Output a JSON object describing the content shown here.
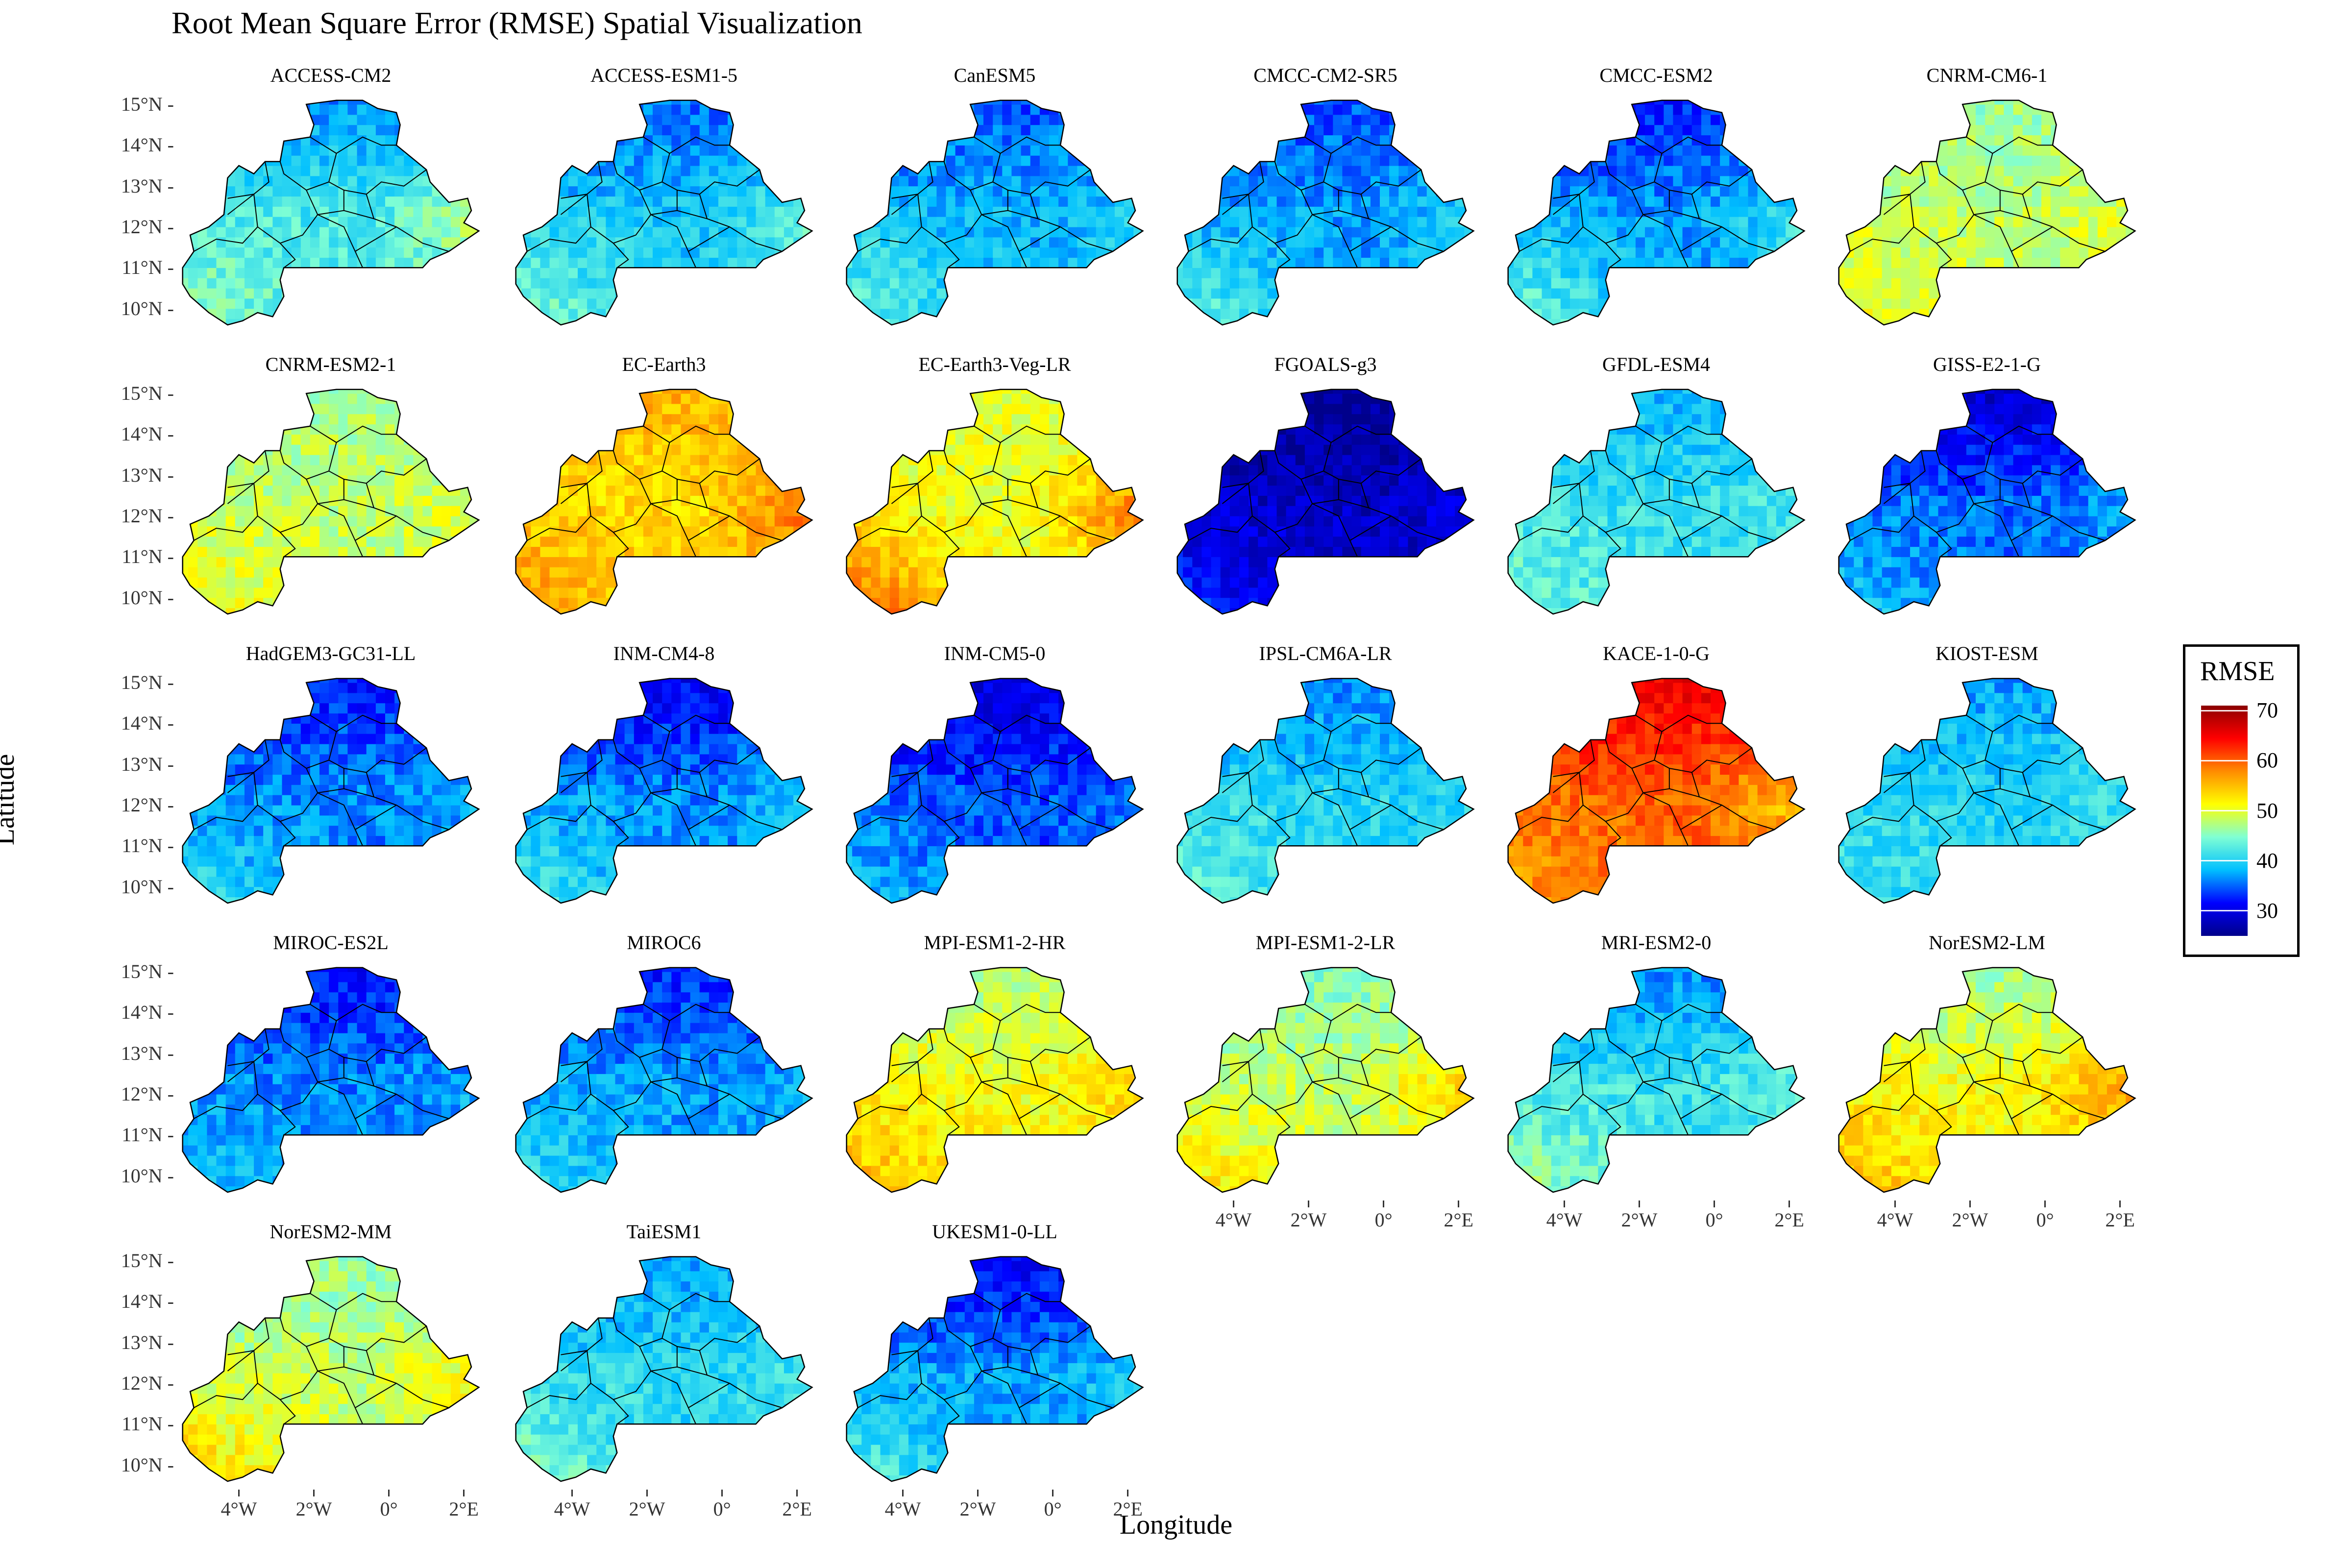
{
  "title": "Root Mean Square Error (RMSE) Spatial Visualization",
  "xlabel": "Longitude",
  "ylabel": "Latitude",
  "y_ticks": [
    "15°N",
    "14°N",
    "13°N",
    "12°N",
    "11°N",
    "10°N"
  ],
  "x_ticks": [
    "4°W",
    "2°W",
    "0°",
    "2°E"
  ],
  "legend": {
    "title": "RMSE",
    "ticks": [
      "70",
      "60",
      "50",
      "40",
      "30"
    ],
    "range": [
      25,
      71
    ],
    "colors": [
      "#00008b",
      "#0000ff",
      "#00bfff",
      "#7fffd4",
      "#ffff00",
      "#ff8c00",
      "#ff0000",
      "#8b0000"
    ]
  },
  "chart_data": {
    "type": "heatmap",
    "region": "Burkina Faso",
    "value_scale": [
      25,
      71
    ],
    "panels": [
      {
        "name": "ACCESS-CM2",
        "mean": 42,
        "north": 36,
        "southwest": 46,
        "east": 48
      },
      {
        "name": "ACCESS-ESM1-5",
        "mean": 39,
        "north": 35,
        "southwest": 46,
        "east": 44
      },
      {
        "name": "CanESM5",
        "mean": 38,
        "north": 34,
        "southwest": 45,
        "east": 40
      },
      {
        "name": "CMCC-CM2-SR5",
        "mean": 37,
        "north": 34,
        "southwest": 45,
        "east": 40
      },
      {
        "name": "CMCC-ESM2",
        "mean": 37,
        "north": 32,
        "southwest": 46,
        "east": 42
      },
      {
        "name": "CNRM-CM6-1",
        "mean": 48,
        "north": 46,
        "southwest": 52,
        "east": 50
      },
      {
        "name": "CNRM-ESM2-1",
        "mean": 48,
        "north": 47,
        "southwest": 52,
        "east": 50
      },
      {
        "name": "EC-Earth3",
        "mean": 53,
        "north": 56,
        "southwest": 58,
        "east": 60
      },
      {
        "name": "EC-Earth3-Veg-LR",
        "mean": 50,
        "north": 50,
        "southwest": 62,
        "east": 60
      },
      {
        "name": "FGOALS-g3",
        "mean": 28,
        "north": 25,
        "southwest": 34,
        "east": 30
      },
      {
        "name": "GFDL-ESM4",
        "mean": 41,
        "north": 38,
        "southwest": 45,
        "east": 42
      },
      {
        "name": "GISS-E2-1-G",
        "mean": 35,
        "north": 28,
        "southwest": 40,
        "east": 38
      },
      {
        "name": "HadGEM3-GC31-LL",
        "mean": 36,
        "north": 32,
        "southwest": 42,
        "east": 38
      },
      {
        "name": "INM-CM4-8",
        "mean": 36,
        "north": 30,
        "southwest": 44,
        "east": 40
      },
      {
        "name": "INM-CM5-0",
        "mean": 34,
        "north": 29,
        "southwest": 40,
        "east": 36
      },
      {
        "name": "IPSL-CM6A-LR",
        "mean": 40,
        "north": 36,
        "southwest": 44,
        "east": 40
      },
      {
        "name": "KACE-1-0-G",
        "mean": 60,
        "north": 66,
        "southwest": 56,
        "east": 54
      },
      {
        "name": "KIOST-ESM",
        "mean": 40,
        "north": 37,
        "southwest": 42,
        "east": 42
      },
      {
        "name": "MIROC-ES2L",
        "mean": 36,
        "north": 31,
        "southwest": 40,
        "east": 38
      },
      {
        "name": "MIROC6",
        "mean": 37,
        "north": 32,
        "southwest": 42,
        "east": 38
      },
      {
        "name": "MPI-ESM1-2-HR",
        "mean": 51,
        "north": 47,
        "southwest": 56,
        "east": 54
      },
      {
        "name": "MPI-ESM1-2-LR",
        "mean": 48,
        "north": 45,
        "southwest": 54,
        "east": 55
      },
      {
        "name": "MRI-ESM2-0",
        "mean": 41,
        "north": 36,
        "southwest": 48,
        "east": 44
      },
      {
        "name": "NorESM2-LM",
        "mean": 51,
        "north": 46,
        "southwest": 56,
        "east": 58
      },
      {
        "name": "NorESM2-MM",
        "mean": 48,
        "north": 46,
        "southwest": 55,
        "east": 52
      },
      {
        "name": "TaiESM1",
        "mean": 40,
        "north": 37,
        "southwest": 46,
        "east": 42
      },
      {
        "name": "UKESM1-0-LL",
        "mean": 37,
        "north": 30,
        "southwest": 44,
        "east": 40
      }
    ]
  }
}
